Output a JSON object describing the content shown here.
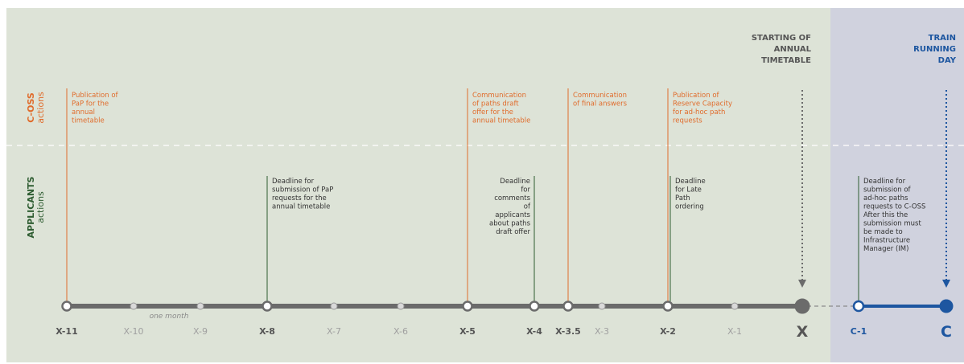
{
  "header": {
    "starting_annual_timetable": [
      "STARTING OF",
      "ANNUAL",
      "TIMETABLE"
    ],
    "train_running_day": [
      "TRAIN",
      "RUNNING",
      "DAY"
    ]
  },
  "side_labels": {
    "coss_bold": "C-OSS",
    "coss_light": "actions",
    "applicants_bold": "APPLICANTS",
    "applicants_light": "actions"
  },
  "timeline": {
    "sub_label": "one month",
    "ticks": [
      {
        "label": "X-11",
        "major": true
      },
      {
        "label": "X-10",
        "major": false
      },
      {
        "label": "X-9",
        "major": false
      },
      {
        "label": "X-8",
        "major": true
      },
      {
        "label": "X-7",
        "major": false
      },
      {
        "label": "X-6",
        "major": false
      },
      {
        "label": "X-5",
        "major": true
      },
      {
        "label": "X-4",
        "major": true
      },
      {
        "label": "X-3.5",
        "major": true
      },
      {
        "label": "X-3",
        "major": false
      },
      {
        "label": "X-2",
        "major": true
      },
      {
        "label": "X-1",
        "major": false
      },
      {
        "label": "X",
        "major": true
      },
      {
        "label": "C-1",
        "major": true
      },
      {
        "label": "C",
        "major": true
      }
    ]
  },
  "coss_events": [
    {
      "at": "X-11",
      "text": [
        "Publication of",
        "PaP for the",
        "annual",
        "timetable"
      ]
    },
    {
      "at": "X-5",
      "text": [
        "Communication",
        "of paths draft",
        "offer for the",
        "annual timetable"
      ]
    },
    {
      "at": "X-3.5",
      "text": [
        "Communication",
        "of final answers"
      ]
    },
    {
      "at": "X-2",
      "text": [
        "Publication of",
        "Reserve Capacity",
        "for ad-hoc path",
        "requests"
      ]
    }
  ],
  "applicant_events": [
    {
      "at": "X-8",
      "text": [
        "Deadline for",
        "submission of PaP",
        "requests for the",
        "annual timetable"
      ]
    },
    {
      "at": "X-4",
      "text": [
        "Deadline",
        "for",
        "comments",
        "of",
        "applicants",
        "about paths",
        "draft offer"
      ]
    },
    {
      "at": "X-2",
      "text": [
        "Deadline",
        "for Late",
        "Path",
        "ordering"
      ]
    },
    {
      "at": "C-1",
      "text": [
        "Deadline for",
        "submission of",
        "ad-hoc paths",
        "requests to C-OSS",
        "After this the",
        "submission must",
        "be made to",
        "Infrastructure",
        "Manager (IM)"
      ]
    }
  ],
  "colors": {
    "main_bg": "#dde3d7",
    "train_bg": "#d0d2de",
    "coss": "#e06c2c",
    "applicants": "#2f5d32",
    "timeline": "#6b6b6b",
    "train_blue": "#1d56a0",
    "header_gray": "#555555"
  }
}
